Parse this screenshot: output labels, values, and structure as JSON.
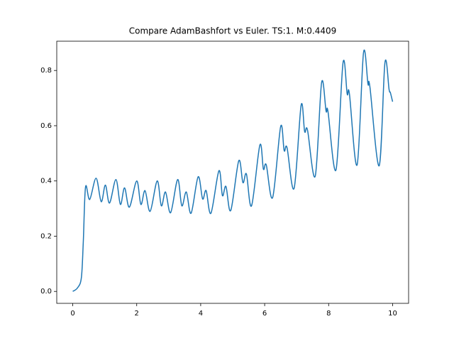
{
  "chart_data": {
    "type": "line",
    "title": "Compare AdamBashfort vs Euler. TS:1. M:0.4409",
    "x": [
      0,
      0.15,
      0.27,
      0.33,
      0.4,
      0.53,
      0.73,
      0.89,
      1.02,
      1.15,
      1.35,
      1.49,
      1.62,
      1.77,
      2.0,
      2.13,
      2.26,
      2.42,
      2.64,
      2.77,
      2.9,
      3.06,
      3.28,
      3.41,
      3.55,
      3.7,
      3.92,
      4.06,
      4.17,
      4.32,
      4.57,
      4.68,
      4.79,
      4.94,
      5.19,
      5.32,
      5.43,
      5.59,
      5.85,
      5.96,
      6.05,
      6.25,
      6.5,
      6.61,
      6.7,
      6.92,
      7.14,
      7.25,
      7.34,
      7.58,
      7.78,
      7.92,
      7.98,
      8.23,
      8.45,
      8.58,
      8.65,
      8.89,
      9.09,
      9.23,
      9.29,
      9.58,
      9.76,
      9.89,
      9.93,
      10.0
    ],
    "series": [
      {
        "color": "#1f77b4",
        "values": [
          0,
          0.013,
          0.05,
          0.18,
          0.378,
          0.333,
          0.41,
          0.325,
          0.385,
          0.32,
          0.405,
          0.315,
          0.375,
          0.305,
          0.4,
          0.315,
          0.365,
          0.29,
          0.4,
          0.31,
          0.36,
          0.285,
          0.405,
          0.31,
          0.36,
          0.283,
          0.415,
          0.335,
          0.365,
          0.283,
          0.437,
          0.347,
          0.38,
          0.293,
          0.473,
          0.394,
          0.425,
          0.31,
          0.53,
          0.443,
          0.458,
          0.34,
          0.597,
          0.51,
          0.52,
          0.373,
          0.674,
          0.579,
          0.584,
          0.417,
          0.756,
          0.653,
          0.651,
          0.44,
          0.828,
          0.715,
          0.715,
          0.458,
          0.864,
          0.751,
          0.741,
          0.455,
          0.828,
          0.731,
          0.72,
          0.687
        ]
      }
    ],
    "xlim": [
      -0.5,
      10.5
    ],
    "ylim": [
      -0.0432,
      0.906
    ],
    "xticks": [
      0,
      2,
      4,
      6,
      8,
      10
    ],
    "yticks": [
      {
        "value": 0,
        "label": "0.0"
      },
      0.2,
      0.4,
      0.6,
      0.8
    ]
  }
}
